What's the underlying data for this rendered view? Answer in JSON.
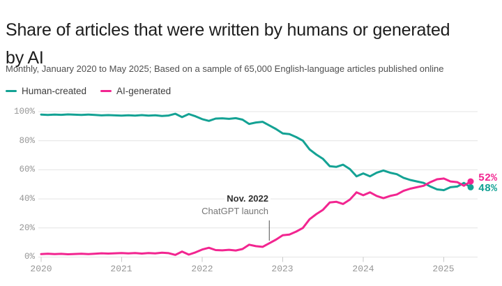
{
  "header": {
    "title": "Share of articles that were written by humans or generated by AI",
    "subtitle": "Monthly, January 2020 to May 2025; Based on a sample of 65,000 English-language articles published online"
  },
  "chart_data": {
    "type": "line",
    "title": "Share of articles that were written by humans or generated by AI",
    "subtitle": "Monthly, January 2020 to May 2025; Based on a sample of 65,000 English-language articles published online",
    "x_unit": "month",
    "x_range": [
      "2020-01",
      "2025-05"
    ],
    "x_tick_labels": [
      "2020",
      "2021",
      "2022",
      "2023",
      "2024",
      "2025"
    ],
    "x_tick_month_indices": [
      0,
      12,
      24,
      36,
      48,
      60
    ],
    "y_tick_labels": [
      "100%",
      "80%",
      "60%",
      "40%",
      "20%",
      "0%"
    ],
    "y_tick_values": [
      100,
      80,
      60,
      40,
      20,
      0
    ],
    "ylim": [
      0,
      100
    ],
    "grid": true,
    "legend_position": "top-left",
    "series": [
      {
        "name": "Human-created",
        "color": "#14A294",
        "end_label": "48%",
        "values": [
          98,
          97.7,
          98,
          97.8,
          98.1,
          97.9,
          97.7,
          98,
          97.7,
          97.4,
          97.6,
          97.4,
          97.2,
          97.5,
          97.2,
          97.6,
          97.2,
          97.5,
          97,
          97.3,
          98.5,
          96.2,
          98.3,
          96.8,
          94.8,
          93.6,
          95.2,
          95.4,
          95,
          95.5,
          94.5,
          91.5,
          92.5,
          93,
          90.5,
          88,
          85,
          84.5,
          82.5,
          80,
          74,
          70.5,
          67.5,
          62.5,
          62,
          63.5,
          60.5,
          55.5,
          57.5,
          55.5,
          58,
          59.5,
          58,
          57,
          54.5,
          53,
          52,
          51,
          48.5,
          46.5,
          46,
          48,
          48.5,
          51,
          48
        ]
      },
      {
        "name": "AI-generated",
        "color": "#F22590",
        "end_label": "52%",
        "values": [
          2,
          2.3,
          2,
          2.2,
          1.9,
          2.1,
          2.3,
          2,
          2.3,
          2.6,
          2.4,
          2.6,
          2.8,
          2.5,
          2.8,
          2.4,
          2.8,
          2.5,
          3,
          2.7,
          1.5,
          3.8,
          1.7,
          3.2,
          5.2,
          6.4,
          4.8,
          4.6,
          5,
          4.5,
          5.5,
          8.5,
          7.5,
          7,
          9.5,
          12,
          15,
          15.5,
          17.5,
          20,
          26,
          29.5,
          32.5,
          37.5,
          38,
          36.5,
          39.5,
          44.5,
          42.5,
          44.5,
          42,
          40.5,
          42,
          43,
          45.5,
          47,
          48,
          49,
          51.5,
          53.5,
          54,
          52,
          51.5,
          49,
          52
        ]
      }
    ],
    "annotation": {
      "line1": "Nov. 2022",
      "line2": "ChatGPT launch",
      "month_index": 34
    },
    "style": {
      "grid_color": "#E4E4E4",
      "tick_color": "#C9C9C9",
      "axis_label_color": "#969696",
      "annotation_line_color": "#4D4D4D",
      "title_color": "#1D1D1D",
      "subtitle_color": "#4F4F4F"
    }
  }
}
